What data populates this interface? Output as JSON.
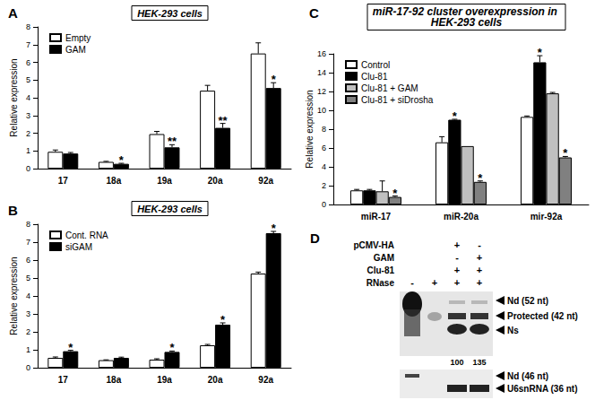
{
  "chart_data": [
    {
      "type": "bar",
      "panel": "A",
      "subtitle": "HEK-293 cells",
      "y_label": "Relative expression",
      "categories": [
        "17",
        "18a",
        "19a",
        "20a",
        "92a"
      ],
      "series": [
        {
          "name": "Empty",
          "color": "#ffffff",
          "values": [
            0.95,
            0.38,
            1.95,
            4.4,
            6.5
          ],
          "errors": [
            0.1,
            0.03,
            0.15,
            0.3,
            0.6
          ],
          "annotations": [
            null,
            null,
            null,
            null,
            null
          ]
        },
        {
          "name": "GAM",
          "color": "#000000",
          "values": [
            0.85,
            0.27,
            1.2,
            2.3,
            4.55
          ],
          "errors": [
            0.06,
            0.03,
            0.15,
            0.25,
            0.3
          ],
          "annotations": [
            null,
            "*",
            "**",
            "**",
            "*"
          ]
        }
      ],
      "ylim": [
        0,
        8
      ],
      "yticks": [
        0,
        1,
        2,
        3,
        4,
        5,
        6,
        7,
        8
      ],
      "grid": false,
      "legend": "upper left"
    },
    {
      "type": "bar",
      "panel": "B",
      "subtitle": "HEK-293 cells",
      "y_label": "Relative expression",
      "categories": [
        "17",
        "18a",
        "19a",
        "20a",
        "92a"
      ],
      "series": [
        {
          "name": "Cont. RNA",
          "color": "#ffffff",
          "values": [
            0.55,
            0.42,
            0.45,
            1.25,
            5.25
          ],
          "errors": [
            0.05,
            0.02,
            0.05,
            0.05,
            0.08
          ],
          "annotations": [
            null,
            null,
            null,
            null,
            null
          ]
        },
        {
          "name": "siGAM",
          "color": "#000000",
          "values": [
            0.92,
            0.55,
            0.88,
            2.4,
            7.5
          ],
          "errors": [
            0.05,
            0.04,
            0.05,
            0.1,
            0.1
          ],
          "annotations": [
            "*",
            null,
            "*",
            "*",
            "*"
          ]
        }
      ],
      "ylim": [
        0,
        8
      ],
      "yticks": [
        0,
        1,
        2,
        3,
        4,
        5,
        6,
        7,
        8
      ],
      "grid": false,
      "legend": "upper left"
    },
    {
      "type": "bar",
      "panel": "C",
      "title": "miR-17-92 cluster overexpression in HEK-293 cells",
      "y_label": "Relative expression",
      "categories": [
        "miR-17",
        "miR-20a",
        "mir-92a"
      ],
      "series": [
        {
          "name": "Control",
          "color": "#ffffff",
          "values": [
            1.5,
            6.6,
            9.3
          ],
          "errors": [
            0.1,
            0.6,
            0.1
          ],
          "annotations": [
            null,
            null,
            null
          ]
        },
        {
          "name": "Clu-81",
          "color": "#000000",
          "values": [
            1.5,
            9.0,
            15.1
          ],
          "errors": [
            0.1,
            0.05,
            0.7
          ],
          "annotations": [
            null,
            "*",
            "*"
          ]
        },
        {
          "name": "Clu-81 + GAM",
          "color": "#c0c0c0",
          "values": [
            1.4,
            6.2,
            11.8
          ],
          "errors": [
            1.1,
            0,
            0.1
          ],
          "annotations": [
            null,
            null,
            null
          ]
        },
        {
          "name": "Clu-81 + siDrosha",
          "color": "#808080",
          "values": [
            0.8,
            2.4,
            5.0
          ],
          "errors": [
            0.1,
            0.1,
            0.1
          ],
          "annotations": [
            "*",
            "*",
            "*"
          ]
        }
      ],
      "ylim": [
        0,
        16
      ],
      "yticks": [
        0,
        2,
        4,
        6,
        8,
        10,
        12,
        14,
        16
      ],
      "grid": false,
      "legend": "upper left"
    }
  ],
  "gel": {
    "panel": "D",
    "rows": [
      {
        "label": "pCMV-HA",
        "lanes": [
          null,
          null,
          "+",
          "-"
        ]
      },
      {
        "label": "GAM",
        "lanes": [
          null,
          null,
          "-",
          "+"
        ]
      },
      {
        "label": "Clu-81",
        "lanes": [
          null,
          null,
          "+",
          "+"
        ]
      },
      {
        "label": "RNase",
        "lanes": [
          "-",
          "+",
          "+",
          "+"
        ]
      }
    ],
    "quantification": [
      null,
      null,
      100,
      135
    ],
    "upper_bands": [
      "Nd (52 nt)",
      "Protected (42 nt)",
      "Ns"
    ],
    "lower_bands": [
      "Nd (46 nt)",
      "U6snRNA (36 nt)"
    ]
  }
}
